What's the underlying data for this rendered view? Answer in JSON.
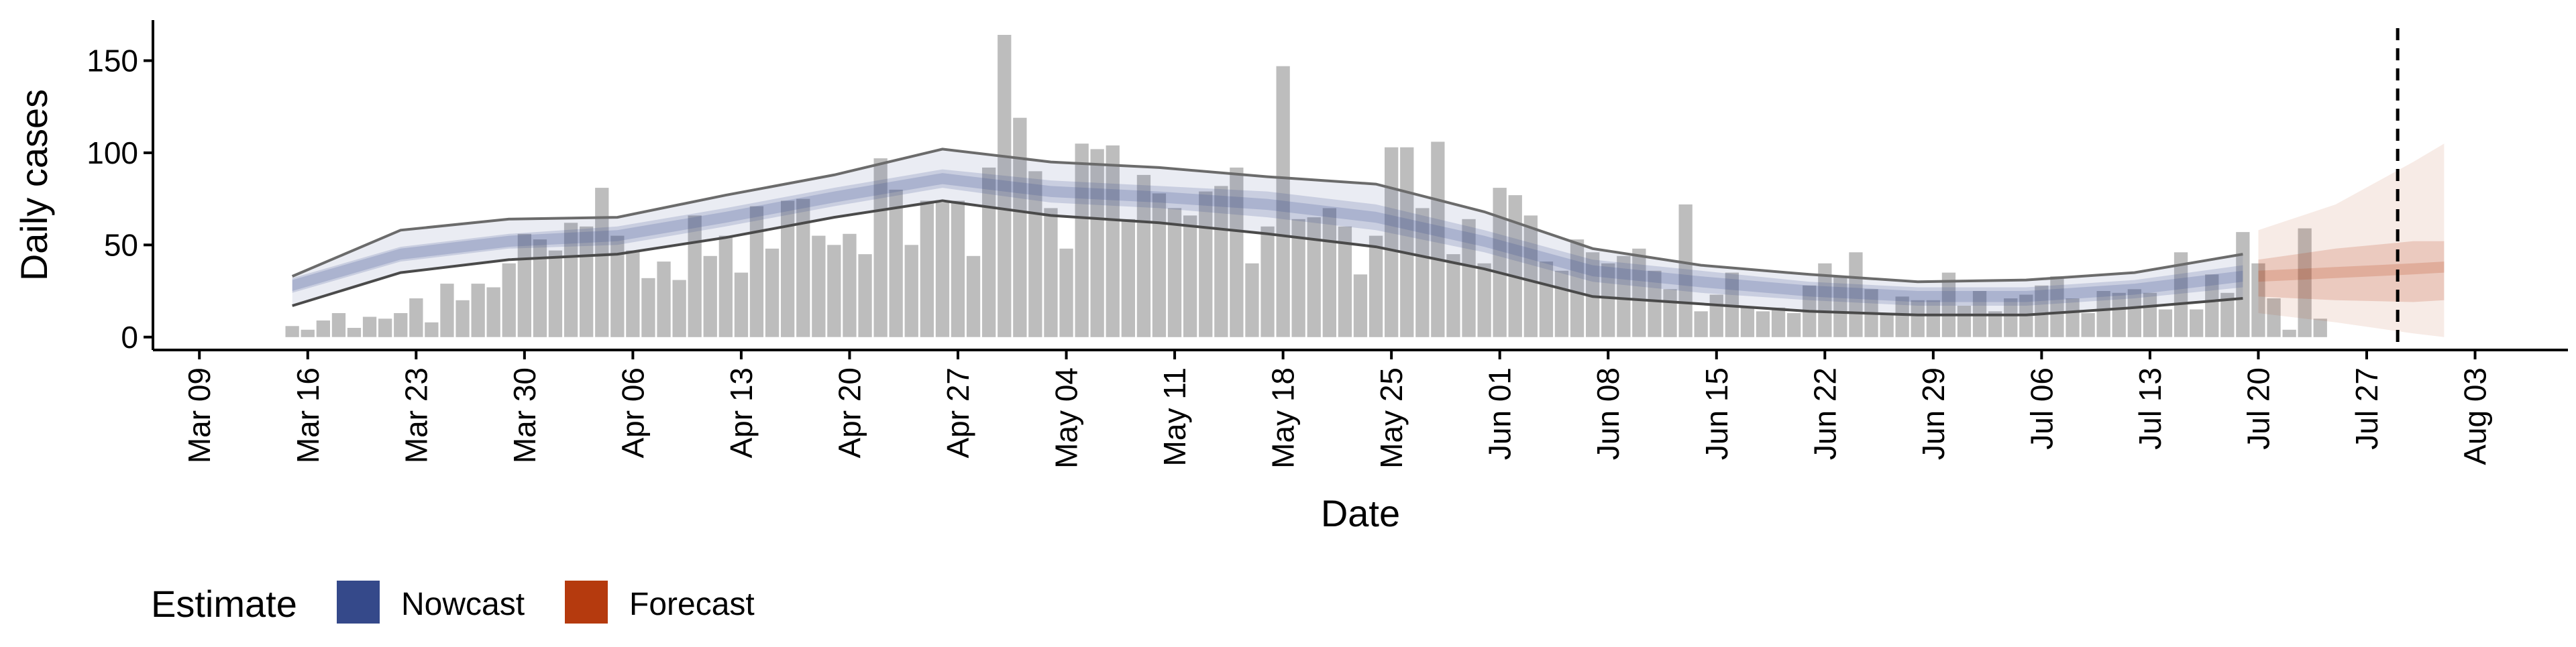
{
  "chart_data": {
    "type": "bar",
    "xlabel": "Date",
    "ylabel": "Daily cases",
    "ylim": [
      -7,
      172
    ],
    "yticks": [
      0,
      50,
      100,
      150
    ],
    "xlim": [
      "2020-03-06",
      "2020-08-09"
    ],
    "xticks": [
      {
        "date": "2020-03-09",
        "label": "Mar 09"
      },
      {
        "date": "2020-03-16",
        "label": "Mar 16"
      },
      {
        "date": "2020-03-23",
        "label": "Mar 23"
      },
      {
        "date": "2020-03-30",
        "label": "Mar 30"
      },
      {
        "date": "2020-04-06",
        "label": "Apr 06"
      },
      {
        "date": "2020-04-13",
        "label": "Apr 13"
      },
      {
        "date": "2020-04-20",
        "label": "Apr 20"
      },
      {
        "date": "2020-04-27",
        "label": "Apr 27"
      },
      {
        "date": "2020-05-04",
        "label": "May 04"
      },
      {
        "date": "2020-05-11",
        "label": "May 11"
      },
      {
        "date": "2020-05-18",
        "label": "May 18"
      },
      {
        "date": "2020-05-25",
        "label": "May 25"
      },
      {
        "date": "2020-06-01",
        "label": "Jun 01"
      },
      {
        "date": "2020-06-08",
        "label": "Jun 08"
      },
      {
        "date": "2020-06-15",
        "label": "Jun 15"
      },
      {
        "date": "2020-06-22",
        "label": "Jun 22"
      },
      {
        "date": "2020-06-29",
        "label": "Jun 29"
      },
      {
        "date": "2020-07-06",
        "label": "Jul 06"
      },
      {
        "date": "2020-07-13",
        "label": "Jul 13"
      },
      {
        "date": "2020-07-20",
        "label": "Jul 20"
      },
      {
        "date": "2020-07-27",
        "label": "Jul 27"
      },
      {
        "date": "2020-08-03",
        "label": "Aug 03"
      }
    ],
    "bars": {
      "start_date": "2020-03-15",
      "values": [
        6,
        4,
        9,
        13,
        5,
        11,
        10,
        13,
        21,
        8,
        29,
        20,
        29,
        27,
        40,
        56,
        53,
        47,
        62,
        60,
        81,
        55,
        47,
        32,
        41,
        31,
        66,
        44,
        55,
        35,
        71,
        48,
        74,
        75,
        55,
        50,
        56,
        45,
        97,
        80,
        50,
        74,
        73,
        74,
        44,
        92,
        164,
        119,
        90,
        70,
        48,
        105,
        102,
        104,
        64,
        88,
        78,
        70,
        66,
        79,
        82,
        92,
        40,
        60,
        147,
        64,
        65,
        70,
        60,
        34,
        55,
        103,
        103,
        70,
        106,
        45,
        64,
        40,
        81,
        77,
        66,
        41,
        36,
        53,
        46,
        40,
        44,
        48,
        36,
        26,
        72,
        14,
        23,
        35,
        16,
        14,
        16,
        13,
        28,
        40,
        33,
        46,
        26,
        12,
        22,
        20,
        20,
        35,
        17,
        25,
        14,
        21,
        23,
        28,
        33,
        21,
        13,
        25,
        24,
        26,
        24,
        15,
        46,
        15,
        34,
        24,
        57,
        40,
        21,
        4,
        59,
        10
      ]
    },
    "series": [
      {
        "name": "Nowcast",
        "color": "#35498a",
        "kind": "band",
        "dates": [
          "2020-03-15",
          "2020-03-22",
          "2020-03-29",
          "2020-04-05",
          "2020-04-12",
          "2020-04-19",
          "2020-04-26",
          "2020-05-03",
          "2020-05-10",
          "2020-05-17",
          "2020-05-24",
          "2020-05-31",
          "2020-06-07",
          "2020-06-14",
          "2020-06-21",
          "2020-06-28",
          "2020-07-05",
          "2020-07-12",
          "2020-07-19"
        ],
        "median": [
          28,
          45,
          52,
          55,
          65,
          76,
          86,
          79,
          76,
          72,
          65,
          52,
          36,
          30,
          25,
          22,
          22,
          26,
          33
        ],
        "inner_lower": [
          24,
          41,
          48,
          50,
          60,
          71,
          81,
          73,
          70,
          65,
          58,
          46,
          30,
          24,
          20,
          17,
          17,
          21,
          27
        ],
        "inner_upper": [
          32,
          49,
          56,
          60,
          70,
          81,
          91,
          85,
          82,
          79,
          72,
          58,
          42,
          36,
          30,
          27,
          27,
          31,
          39
        ],
        "outer_lower": [
          17,
          35,
          42,
          45,
          54,
          65,
          74,
          66,
          62,
          56,
          49,
          37,
          22,
          18,
          14,
          12,
          12,
          16,
          21
        ],
        "outer_upper": [
          33,
          58,
          64,
          65,
          77,
          88,
          102,
          95,
          92,
          87,
          83,
          68,
          48,
          39,
          34,
          30,
          31,
          35,
          45
        ]
      },
      {
        "name": "Forecast",
        "color": "#b53a0e",
        "kind": "band",
        "dates": [
          "2020-07-20",
          "2020-07-25",
          "2020-07-30",
          "2020-08-01"
        ],
        "median": [
          33,
          35,
          37,
          38
        ],
        "inner_lower": [
          22,
          20,
          19,
          20
        ],
        "inner_upper": [
          42,
          48,
          52,
          52
        ],
        "outer_lower": [
          13,
          8,
          2,
          0
        ],
        "outer_upper": [
          58,
          72,
          95,
          105
        ]
      }
    ],
    "vline": {
      "date": "2020-07-29",
      "style": "dashed"
    },
    "legend": {
      "title": "Estimate",
      "position": "bottom-left",
      "items": [
        {
          "label": "Nowcast",
          "color": "#35498a"
        },
        {
          "label": "Forecast",
          "color": "#b53a0e"
        }
      ]
    },
    "grid": false
  }
}
